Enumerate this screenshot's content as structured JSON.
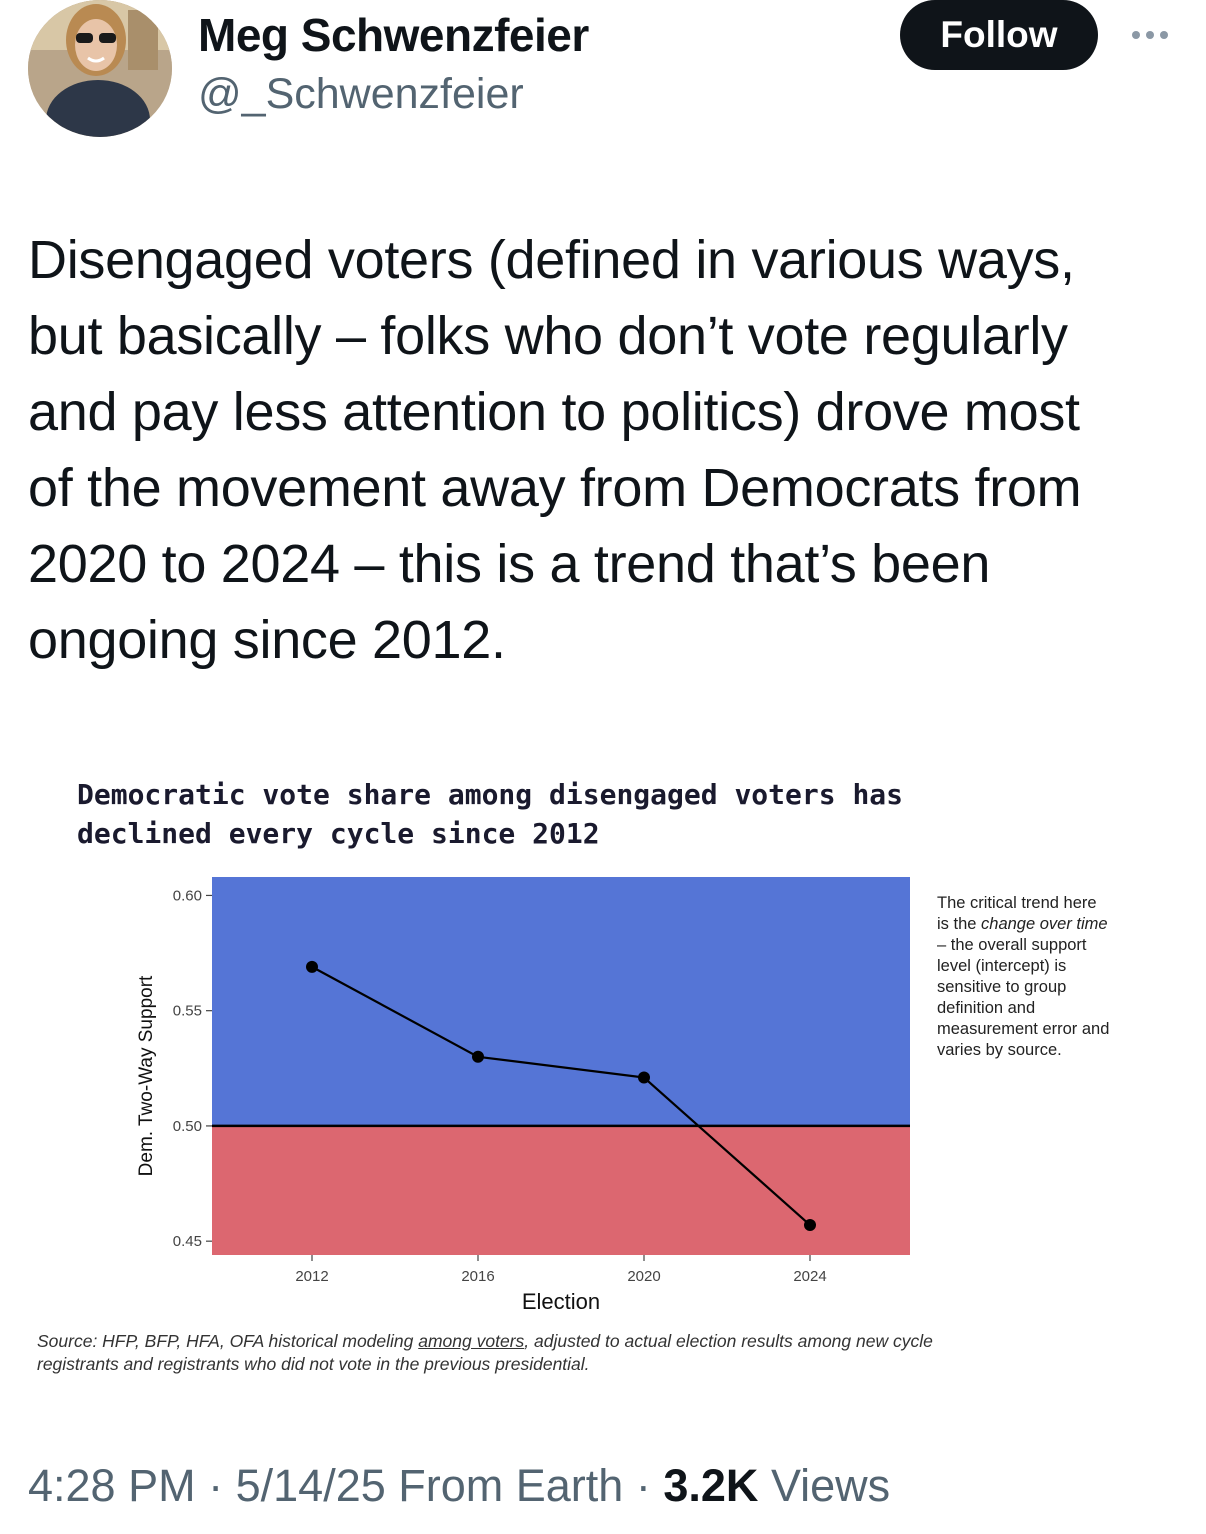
{
  "author": {
    "name": "Meg Schwenzfeier",
    "handle": "@_Schwenzfeier",
    "follow_label": "Follow"
  },
  "tweet": {
    "lines": [
      "Disengaged voters (defined in various ways,",
      "but basically – folks who don’t vote regularly",
      "and pay less attention to politics) drove most",
      "of the movement away from Democrats from",
      "2020 to 2024 – this is a trend that’s been",
      "ongoing since 2012."
    ]
  },
  "chart_data": {
    "type": "line",
    "title_lines": [
      "Democratic vote share among disengaged voters has",
      "declined every cycle since 2012"
    ],
    "x": [
      "2012",
      "2016",
      "2020",
      "2024"
    ],
    "series": [
      {
        "values": [
          0.569,
          0.53,
          0.521,
          0.457
        ]
      }
    ],
    "xlabel": "Election",
    "ylabel": "Dem. Two-Way Support",
    "ylim": [
      0.444,
      0.608
    ],
    "yticks": [
      "0.60",
      "0.55",
      "0.50",
      "0.45"
    ],
    "threshold": 0.5,
    "colors": {
      "above": "#5575d6",
      "below": "#dc6770",
      "line": "#000000"
    },
    "note_lines": [
      "The critical trend here",
      "is the change over time",
      "– the overall support",
      "level (intercept) is",
      "sensitive to group",
      "definition and",
      "measurement error and",
      "varies by source."
    ],
    "source": {
      "prefix": "Source: HFP, BFP, HFA, OFA historical modeling ",
      "link": "among voters",
      "suffix": ", adjusted to actual election results among new cycle",
      "line2": "registrants and registrants who did not vote in the previous presidential."
    }
  },
  "meta": {
    "time": "4:28 PM",
    "date": "5/14/25",
    "location": "From Earth",
    "views_count": "3.2K",
    "views_label": "Views"
  }
}
